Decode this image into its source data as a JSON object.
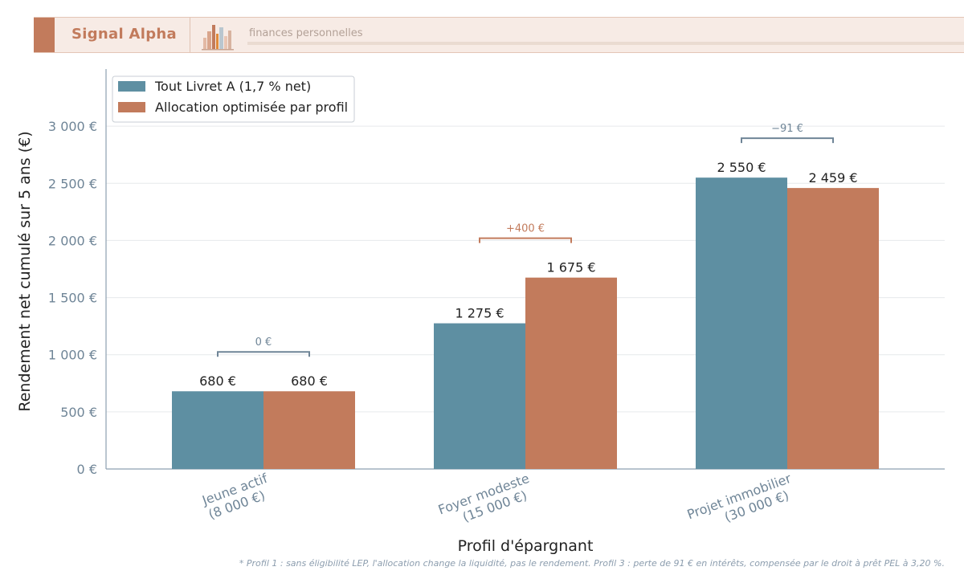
{
  "header": {
    "brand": "Signal Alpha",
    "tagline": "finances personnelles"
  },
  "footnote": "* Profil 1 : sans éligibilité LEP, l'allocation change la liquidité, pas le rendement.  Profil 3 : perte de 91 € en intérêts, compensée par le droit à prêt PEL à 3,20 %.",
  "colors": {
    "series_livret": "#5e8fa2",
    "series_optim": "#c27b5c",
    "axis_text": "#6f8597",
    "label_text": "#222222",
    "brand": "#c27b5c"
  },
  "chart_data": {
    "type": "bar",
    "xlabel": "Profil d'épargnant",
    "ylabel": "Rendement net cumulé sur 5 ans (€)",
    "ylim": [
      0,
      3500
    ],
    "yticks": [
      0,
      500,
      1000,
      1500,
      2000,
      2500,
      3000
    ],
    "ytick_labels": [
      "0 €",
      "500 €",
      "1 000 €",
      "1 500 €",
      "2 000 €",
      "2 500 €",
      "3 000 €"
    ],
    "grid": "horizontal",
    "legend_position": "top-left",
    "categories": [
      [
        "Jeune actif",
        "(8 000 €)"
      ],
      [
        "Foyer modeste",
        "(15 000 €)"
      ],
      [
        "Projet immobilier",
        "(30 000 €)"
      ]
    ],
    "series": [
      {
        "name": "Tout Livret A (1,7 % net)",
        "values": [
          680,
          1275,
          2550
        ],
        "labels": [
          "680 €",
          "1 275 €",
          "2 550 €"
        ],
        "color": "#5e8fa2"
      },
      {
        "name": "Allocation optimisée par profil",
        "values": [
          680,
          1675,
          2459
        ],
        "labels": [
          "680 €",
          "1 675 €",
          "2 459 €"
        ],
        "color": "#c27b5c"
      }
    ],
    "differences": [
      {
        "label": "0 €",
        "color": "#6f8597"
      },
      {
        "label": "+400 €",
        "color": "#c27b5c"
      },
      {
        "label": "−91 €",
        "color": "#6f8597"
      }
    ]
  }
}
